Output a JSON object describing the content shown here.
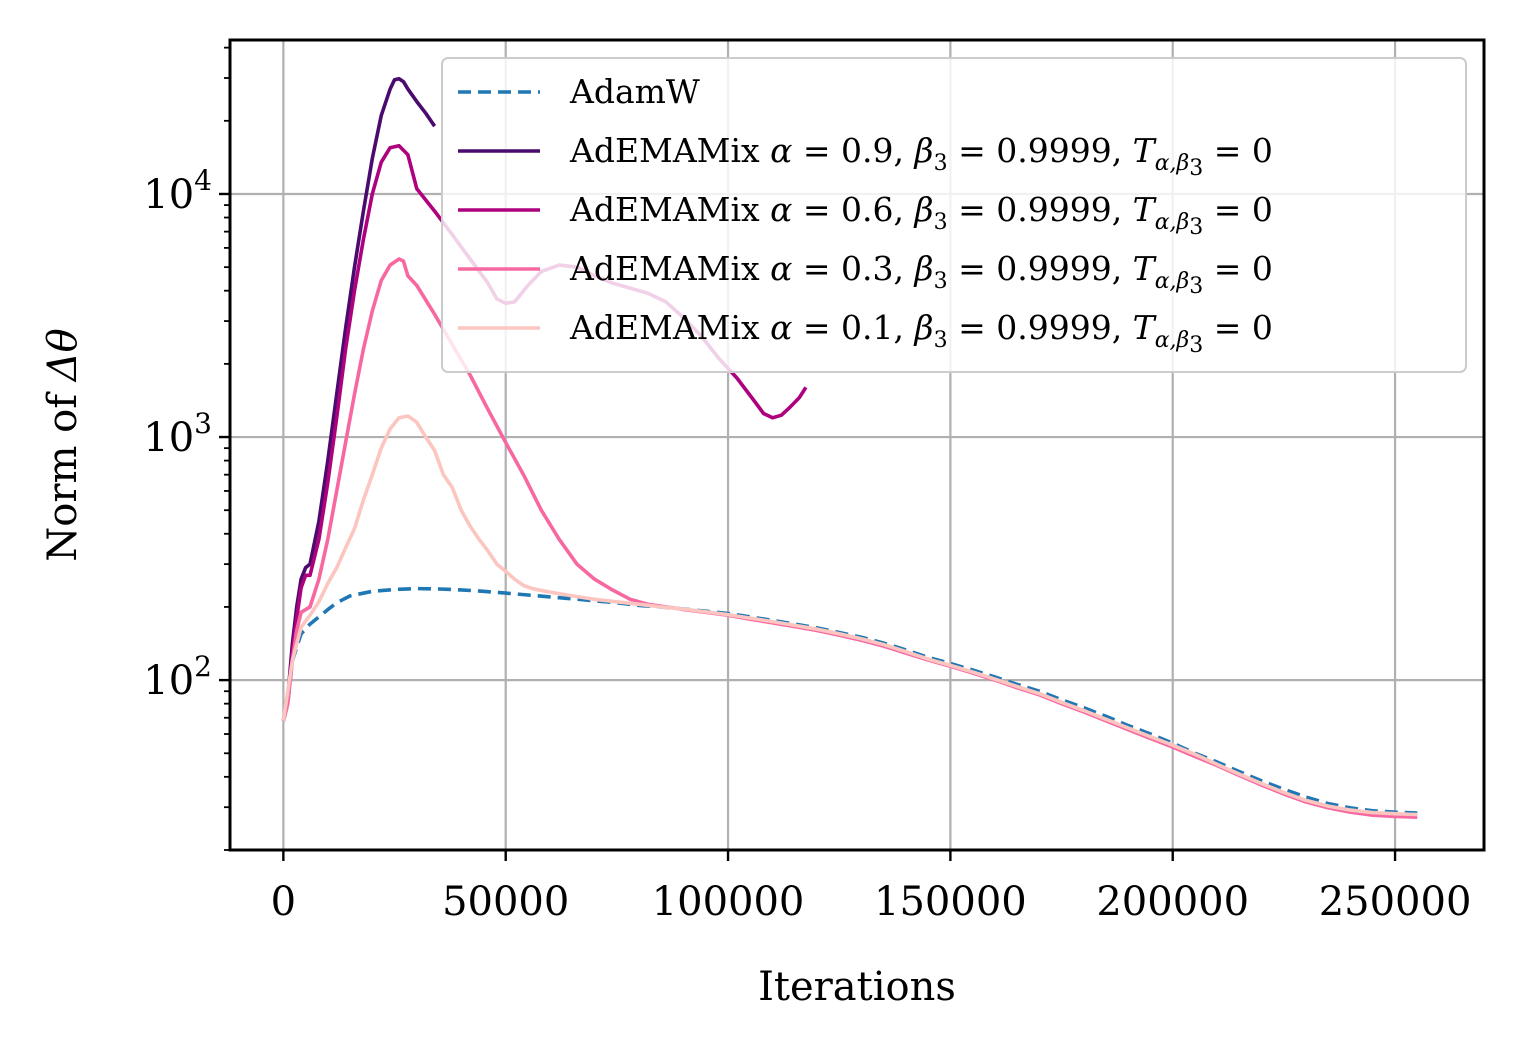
{
  "chart_data": {
    "type": "line",
    "xlabel": "Iterations",
    "ylabel_text": "Norm of ",
    "ylabel_symbol": "Δθ",
    "y_scale": "log",
    "xlim": [
      -12000,
      270000
    ],
    "ylim": [
      20,
      43000
    ],
    "x_ticks": [
      0,
      50000,
      100000,
      150000,
      200000,
      250000
    ],
    "x_tick_labels": [
      "0",
      "50000",
      "100000",
      "150000",
      "200000",
      "250000"
    ],
    "y_ticks": [
      100,
      1000,
      10000
    ],
    "y_tick_base": "10",
    "y_tick_exponents": [
      "2",
      "3",
      "4"
    ],
    "grid": true,
    "legend_placement": "top-right",
    "series": [
      {
        "name": "AdamW",
        "label": {
          "pre": "AdamW"
        },
        "color": "#1f77b4",
        "dash": true,
        "points": [
          [
            0,
            68
          ],
          [
            1000,
            80
          ],
          [
            2000,
            120
          ],
          [
            4000,
            155
          ],
          [
            6000,
            170
          ],
          [
            8000,
            182
          ],
          [
            10000,
            195
          ],
          [
            12000,
            208
          ],
          [
            15000,
            222
          ],
          [
            20000,
            232
          ],
          [
            25000,
            236
          ],
          [
            30000,
            238
          ],
          [
            35000,
            237
          ],
          [
            40000,
            235
          ],
          [
            45000,
            232
          ],
          [
            50000,
            228
          ],
          [
            55000,
            224
          ],
          [
            60000,
            220
          ],
          [
            65000,
            216
          ],
          [
            70000,
            212
          ],
          [
            75000,
            208
          ],
          [
            80000,
            203
          ],
          [
            85000,
            200
          ],
          [
            90000,
            196
          ],
          [
            95000,
            192
          ],
          [
            100000,
            188
          ],
          [
            105000,
            182
          ],
          [
            110000,
            176
          ],
          [
            115000,
            170
          ],
          [
            120000,
            164
          ],
          [
            125000,
            157
          ],
          [
            130000,
            150
          ],
          [
            135000,
            142
          ],
          [
            140000,
            133
          ],
          [
            145000,
            124
          ],
          [
            150000,
            117
          ],
          [
            155000,
            110
          ],
          [
            160000,
            103
          ],
          [
            165000,
            96
          ],
          [
            170000,
            90
          ],
          [
            175000,
            83
          ],
          [
            180000,
            77
          ],
          [
            185000,
            71
          ],
          [
            190000,
            65
          ],
          [
            195000,
            60
          ],
          [
            200000,
            55
          ],
          [
            205000,
            50
          ],
          [
            210000,
            46
          ],
          [
            215000,
            42
          ],
          [
            220000,
            38.5
          ],
          [
            225000,
            35.5
          ],
          [
            230000,
            33
          ],
          [
            235000,
            31
          ],
          [
            240000,
            29.8
          ],
          [
            245000,
            29
          ],
          [
            250000,
            28.6
          ],
          [
            255000,
            28.4
          ]
        ]
      },
      {
        "name": "AdEMAMix α = 0.9, β3 = 0.9999, Tα,β3 = 0",
        "label": {
          "pre": "AdEMAMix ",
          "alpha": "0.9",
          "beta3": "0.9999",
          "t": "0"
        },
        "color": "#4a0a6e",
        "dash": false,
        "points": [
          [
            0,
            68
          ],
          [
            1000,
            85
          ],
          [
            2000,
            140
          ],
          [
            3000,
            200
          ],
          [
            4000,
            260
          ],
          [
            5000,
            290
          ],
          [
            6000,
            300
          ],
          [
            8000,
            450
          ],
          [
            10000,
            800
          ],
          [
            12000,
            1500
          ],
          [
            14000,
            2800
          ],
          [
            16000,
            5000
          ],
          [
            18000,
            8500
          ],
          [
            20000,
            14000
          ],
          [
            22000,
            21000
          ],
          [
            24000,
            27000
          ],
          [
            25000,
            29500
          ],
          [
            26000,
            29800
          ],
          [
            27000,
            29000
          ],
          [
            28000,
            27000
          ],
          [
            30000,
            24000
          ],
          [
            32000,
            21500
          ],
          [
            34000,
            19000
          ]
        ]
      },
      {
        "name": "AdEMAMix α = 0.6, β3 = 0.9999, Tα,β3 = 0",
        "label": {
          "pre": "AdEMAMix ",
          "alpha": "0.6",
          "beta3": "0.9999",
          "t": "0"
        },
        "color": "#ae017e",
        "dash": false,
        "points": [
          [
            0,
            68
          ],
          [
            1000,
            85
          ],
          [
            2000,
            130
          ],
          [
            3000,
            180
          ],
          [
            4000,
            240
          ],
          [
            5000,
            270
          ],
          [
            6000,
            270
          ],
          [
            8000,
            380
          ],
          [
            10000,
            650
          ],
          [
            12000,
            1200
          ],
          [
            14000,
            2300
          ],
          [
            16000,
            4000
          ],
          [
            18000,
            6500
          ],
          [
            20000,
            10000
          ],
          [
            22000,
            13500
          ],
          [
            24000,
            15500
          ],
          [
            26000,
            15800
          ],
          [
            28000,
            14500
          ],
          [
            30000,
            10500
          ],
          [
            34000,
            8500
          ],
          [
            38000,
            6800
          ],
          [
            42000,
            5400
          ],
          [
            46000,
            4300
          ],
          [
            48000,
            3700
          ],
          [
            50000,
            3550
          ],
          [
            52000,
            3600
          ],
          [
            55000,
            4200
          ],
          [
            58000,
            4800
          ],
          [
            62000,
            5100
          ],
          [
            66000,
            5000
          ],
          [
            70000,
            4600
          ],
          [
            74000,
            4300
          ],
          [
            78000,
            4100
          ],
          [
            82000,
            3900
          ],
          [
            86000,
            3600
          ],
          [
            90000,
            3100
          ],
          [
            94000,
            2600
          ],
          [
            98000,
            2100
          ],
          [
            102000,
            1750
          ],
          [
            106000,
            1400
          ],
          [
            108000,
            1250
          ],
          [
            110000,
            1200
          ],
          [
            112000,
            1230
          ],
          [
            114000,
            1330
          ],
          [
            116000,
            1450
          ],
          [
            117500,
            1600
          ]
        ]
      },
      {
        "name": "AdEMAMix α = 0.3, β3 = 0.9999, Tα,β3 = 0",
        "label": {
          "pre": "AdEMAMix ",
          "alpha": "0.3",
          "beta3": "0.9999",
          "t": "0"
        },
        "color": "#f768a1",
        "dash": false,
        "points": [
          [
            0,
            68
          ],
          [
            1000,
            80
          ],
          [
            2000,
            120
          ],
          [
            3000,
            160
          ],
          [
            4000,
            190
          ],
          [
            6000,
            200
          ],
          [
            8000,
            260
          ],
          [
            10000,
            380
          ],
          [
            12000,
            600
          ],
          [
            14000,
            950
          ],
          [
            16000,
            1500
          ],
          [
            18000,
            2300
          ],
          [
            20000,
            3300
          ],
          [
            22000,
            4400
          ],
          [
            24000,
            5100
          ],
          [
            26000,
            5400
          ],
          [
            27000,
            5300
          ],
          [
            28000,
            4600
          ],
          [
            30000,
            4200
          ],
          [
            34000,
            3200
          ],
          [
            38000,
            2400
          ],
          [
            42000,
            1800
          ],
          [
            46000,
            1300
          ],
          [
            50000,
            950
          ],
          [
            54000,
            700
          ],
          [
            58000,
            500
          ],
          [
            62000,
            380
          ],
          [
            66000,
            300
          ],
          [
            70000,
            260
          ],
          [
            74000,
            235
          ],
          [
            78000,
            215
          ],
          [
            82000,
            205
          ],
          [
            86000,
            200
          ],
          [
            88000,
            198
          ],
          [
            90000,
            195
          ],
          [
            95000,
            190
          ],
          [
            100000,
            185
          ],
          [
            105000,
            178
          ],
          [
            110000,
            172
          ],
          [
            115000,
            166
          ],
          [
            120000,
            160
          ],
          [
            125000,
            153
          ],
          [
            130000,
            146
          ],
          [
            135000,
            138
          ],
          [
            140000,
            129
          ],
          [
            145000,
            121
          ],
          [
            150000,
            114
          ],
          [
            155000,
            107
          ],
          [
            160000,
            100
          ],
          [
            165000,
            93
          ],
          [
            170000,
            87
          ],
          [
            175000,
            80
          ],
          [
            180000,
            74
          ],
          [
            185000,
            68
          ],
          [
            190000,
            62.5
          ],
          [
            195000,
            57.5
          ],
          [
            200000,
            53
          ],
          [
            205000,
            48.5
          ],
          [
            210000,
            44.5
          ],
          [
            215000,
            40.5
          ],
          [
            220000,
            37
          ],
          [
            225000,
            34
          ],
          [
            230000,
            31.5
          ],
          [
            235000,
            29.8
          ],
          [
            240000,
            28.6
          ],
          [
            245000,
            27.8
          ],
          [
            250000,
            27.5
          ],
          [
            255000,
            27.3
          ]
        ]
      },
      {
        "name": "AdEMAMix α = 0.1, β3 = 0.9999, Tα,β3 = 0",
        "label": {
          "pre": "AdEMAMix ",
          "alpha": "0.1",
          "beta3": "0.9999",
          "t": "0"
        },
        "color": "#fcc5c0",
        "dash": false,
        "points": [
          [
            0,
            68
          ],
          [
            2000,
            120
          ],
          [
            4000,
            165
          ],
          [
            6000,
            185
          ],
          [
            8000,
            210
          ],
          [
            10000,
            250
          ],
          [
            12000,
            290
          ],
          [
            14000,
            350
          ],
          [
            16000,
            420
          ],
          [
            18000,
            550
          ],
          [
            20000,
            700
          ],
          [
            22000,
            900
          ],
          [
            24000,
            1080
          ],
          [
            26000,
            1200
          ],
          [
            28000,
            1220
          ],
          [
            30000,
            1150
          ],
          [
            32000,
            1000
          ],
          [
            34000,
            880
          ],
          [
            36000,
            700
          ],
          [
            38000,
            620
          ],
          [
            40000,
            500
          ],
          [
            42000,
            430
          ],
          [
            44000,
            380
          ],
          [
            46000,
            340
          ],
          [
            48000,
            300
          ],
          [
            50000,
            280
          ],
          [
            52000,
            260
          ],
          [
            54000,
            245
          ],
          [
            56000,
            238
          ],
          [
            60000,
            230
          ],
          [
            65000,
            222
          ],
          [
            70000,
            215
          ],
          [
            75000,
            210
          ],
          [
            80000,
            205
          ],
          [
            85000,
            200
          ],
          [
            90000,
            196
          ],
          [
            95000,
            191
          ],
          [
            100000,
            186
          ],
          [
            105000,
            180
          ],
          [
            110000,
            174
          ],
          [
            115000,
            168
          ],
          [
            120000,
            162
          ],
          [
            125000,
            155
          ],
          [
            130000,
            148
          ],
          [
            135000,
            140
          ],
          [
            140000,
            131
          ],
          [
            145000,
            122
          ],
          [
            150000,
            115
          ],
          [
            155000,
            108
          ],
          [
            160000,
            101
          ],
          [
            165000,
            94
          ],
          [
            170000,
            88
          ],
          [
            175000,
            81
          ],
          [
            180000,
            75
          ],
          [
            185000,
            69
          ],
          [
            190000,
            63.5
          ],
          [
            195000,
            58.5
          ],
          [
            200000,
            54
          ],
          [
            205000,
            49.5
          ],
          [
            210000,
            45
          ],
          [
            215000,
            41
          ],
          [
            220000,
            37.5
          ],
          [
            225000,
            34.5
          ],
          [
            230000,
            32
          ],
          [
            235000,
            30.3
          ],
          [
            240000,
            29.2
          ],
          [
            245000,
            28.5
          ],
          [
            250000,
            28.2
          ],
          [
            255000,
            28
          ]
        ]
      }
    ]
  }
}
